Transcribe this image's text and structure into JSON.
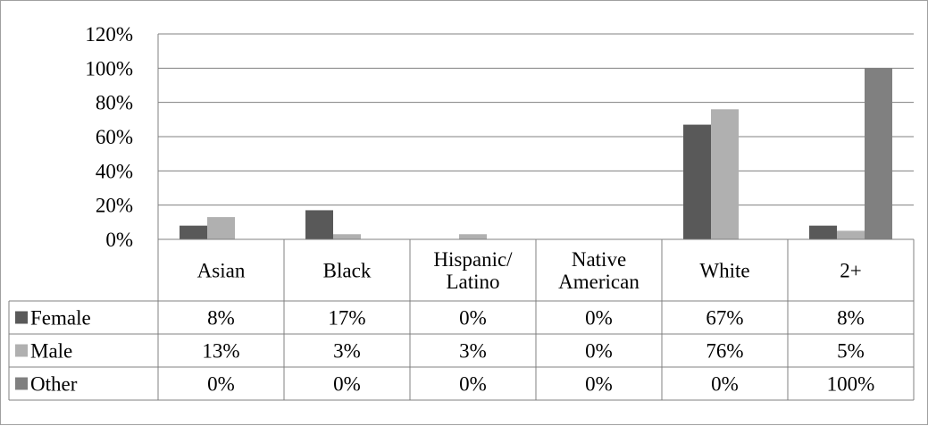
{
  "chart_data": {
    "type": "bar",
    "categories": [
      "Asian",
      "Black",
      "Hispanic/ Latino",
      "Native American",
      "White",
      "2+"
    ],
    "category_lines": [
      [
        "Asian"
      ],
      [
        "Black"
      ],
      [
        "Hispanic/",
        "Latino"
      ],
      [
        "Native",
        "American"
      ],
      [
        "White"
      ],
      [
        "2+"
      ]
    ],
    "series": [
      {
        "name": "Female",
        "values": [
          8,
          17,
          0,
          0,
          67,
          8
        ],
        "labels": [
          "8%",
          "17%",
          "0%",
          "0%",
          "67%",
          "8%"
        ],
        "color": "#595959"
      },
      {
        "name": "Male",
        "values": [
          13,
          3,
          3,
          0,
          76,
          5
        ],
        "labels": [
          "13%",
          "3%",
          "3%",
          "0%",
          "76%",
          "5%"
        ],
        "color": "#b0b0b0"
      },
      {
        "name": "Other",
        "values": [
          0,
          0,
          0,
          0,
          0,
          100
        ],
        "labels": [
          "0%",
          "0%",
          "0%",
          "0%",
          "0%",
          "100%"
        ],
        "color": "#808080"
      }
    ],
    "yticks": [
      "0%",
      "20%",
      "40%",
      "60%",
      "80%",
      "100%",
      "120%"
    ],
    "ylim": [
      0,
      120
    ],
    "grid": true,
    "legend": "data-table"
  }
}
